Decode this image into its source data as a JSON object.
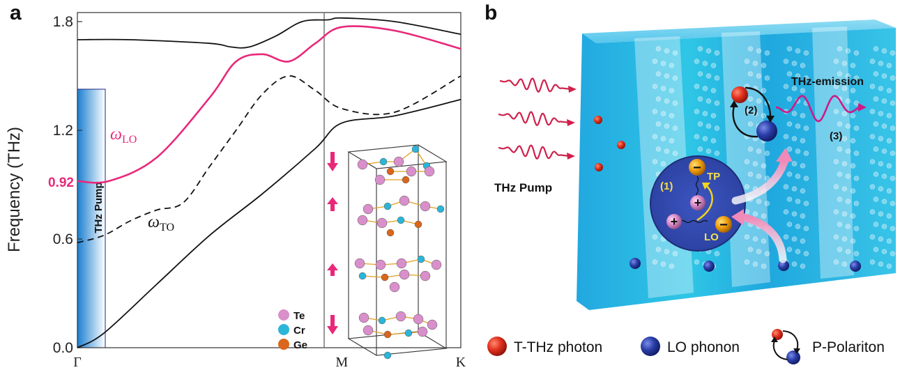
{
  "panel_a": {
    "letter": "a",
    "ylabel": "Frequency (THz)",
    "yticks": [
      "0.0",
      "0.6",
      "1.2",
      "1.8"
    ],
    "highlight_tick": "0.92",
    "xticks": [
      "Γ",
      "M",
      "K"
    ],
    "lo_label": "ω",
    "lo_sub": "LO",
    "to_label": "ω",
    "to_sub": "TO",
    "pump_bar_label": "THz Pump",
    "legend": [
      {
        "label": "Te",
        "color": "#d98fca"
      },
      {
        "label": "Cr",
        "color": "#2bb5d8"
      },
      {
        "label": "Ge",
        "color": "#d9661c"
      }
    ],
    "colors": {
      "lo": "#e8287a",
      "pump_bar": "#2e8fd6",
      "arrow": "#e8287a"
    }
  },
  "chart_data": {
    "type": "line",
    "ylabel": "Frequency (THz)",
    "ylim": [
      0.0,
      1.85
    ],
    "xticks": [
      "Γ",
      "M",
      "K"
    ],
    "x_ticks_pos": [
      0,
      1,
      1.45
    ],
    "series": [
      {
        "name": "ωLO",
        "style": "solid",
        "x": [
          0,
          0.12,
          0.3,
          0.5,
          0.6,
          0.7,
          0.8,
          0.9,
          1.0,
          1.2,
          1.45
        ],
        "y": [
          0.92,
          0.92,
          1.05,
          1.38,
          1.58,
          1.62,
          1.58,
          1.68,
          1.77,
          1.75,
          1.65
        ]
      },
      {
        "name": "ωTO",
        "style": "dashed",
        "x": [
          0,
          0.1,
          0.2,
          0.3,
          0.4,
          0.5,
          0.6,
          0.7,
          0.8,
          0.9,
          1.0,
          1.2,
          1.45
        ],
        "y": [
          0.58,
          0.62,
          0.7,
          0.76,
          0.8,
          1.0,
          1.2,
          1.4,
          1.5,
          1.42,
          1.32,
          1.3,
          1.5
        ]
      },
      {
        "style": "solid",
        "x": [
          0,
          0.2,
          0.5,
          0.58,
          0.65,
          0.75,
          0.85,
          0.95,
          1.0,
          1.2,
          1.45
        ],
        "y": [
          1.7,
          1.7,
          1.68,
          1.66,
          1.66,
          1.72,
          1.8,
          1.81,
          1.82,
          1.8,
          1.73
        ]
      },
      {
        "style": "solid",
        "x": [
          0,
          0.1,
          0.3,
          0.5,
          0.7,
          0.9,
          1.0,
          1.2,
          1.45
        ],
        "y": [
          0.0,
          0.08,
          0.35,
          0.62,
          0.85,
          1.1,
          1.24,
          1.28,
          1.37
        ]
      }
    ],
    "highlight_y": 0.92,
    "pump_band": [
      0,
      1.4
    ]
  },
  "panel_b": {
    "letter": "b",
    "thz_pump": "THz Pump",
    "thz_emission": "THz-emission",
    "step1": "(1)",
    "step2": "(2)",
    "step3": "(3)",
    "tp": "TP",
    "lo": "LO",
    "plus": "+",
    "minus": "−",
    "legend": [
      {
        "label": "T-THz photon",
        "color": "#e0301e"
      },
      {
        "label": "LO phonon",
        "color": "#2a3ea8"
      },
      {
        "label": "P-Polariton",
        "color": "#2a3ea8"
      }
    ]
  }
}
